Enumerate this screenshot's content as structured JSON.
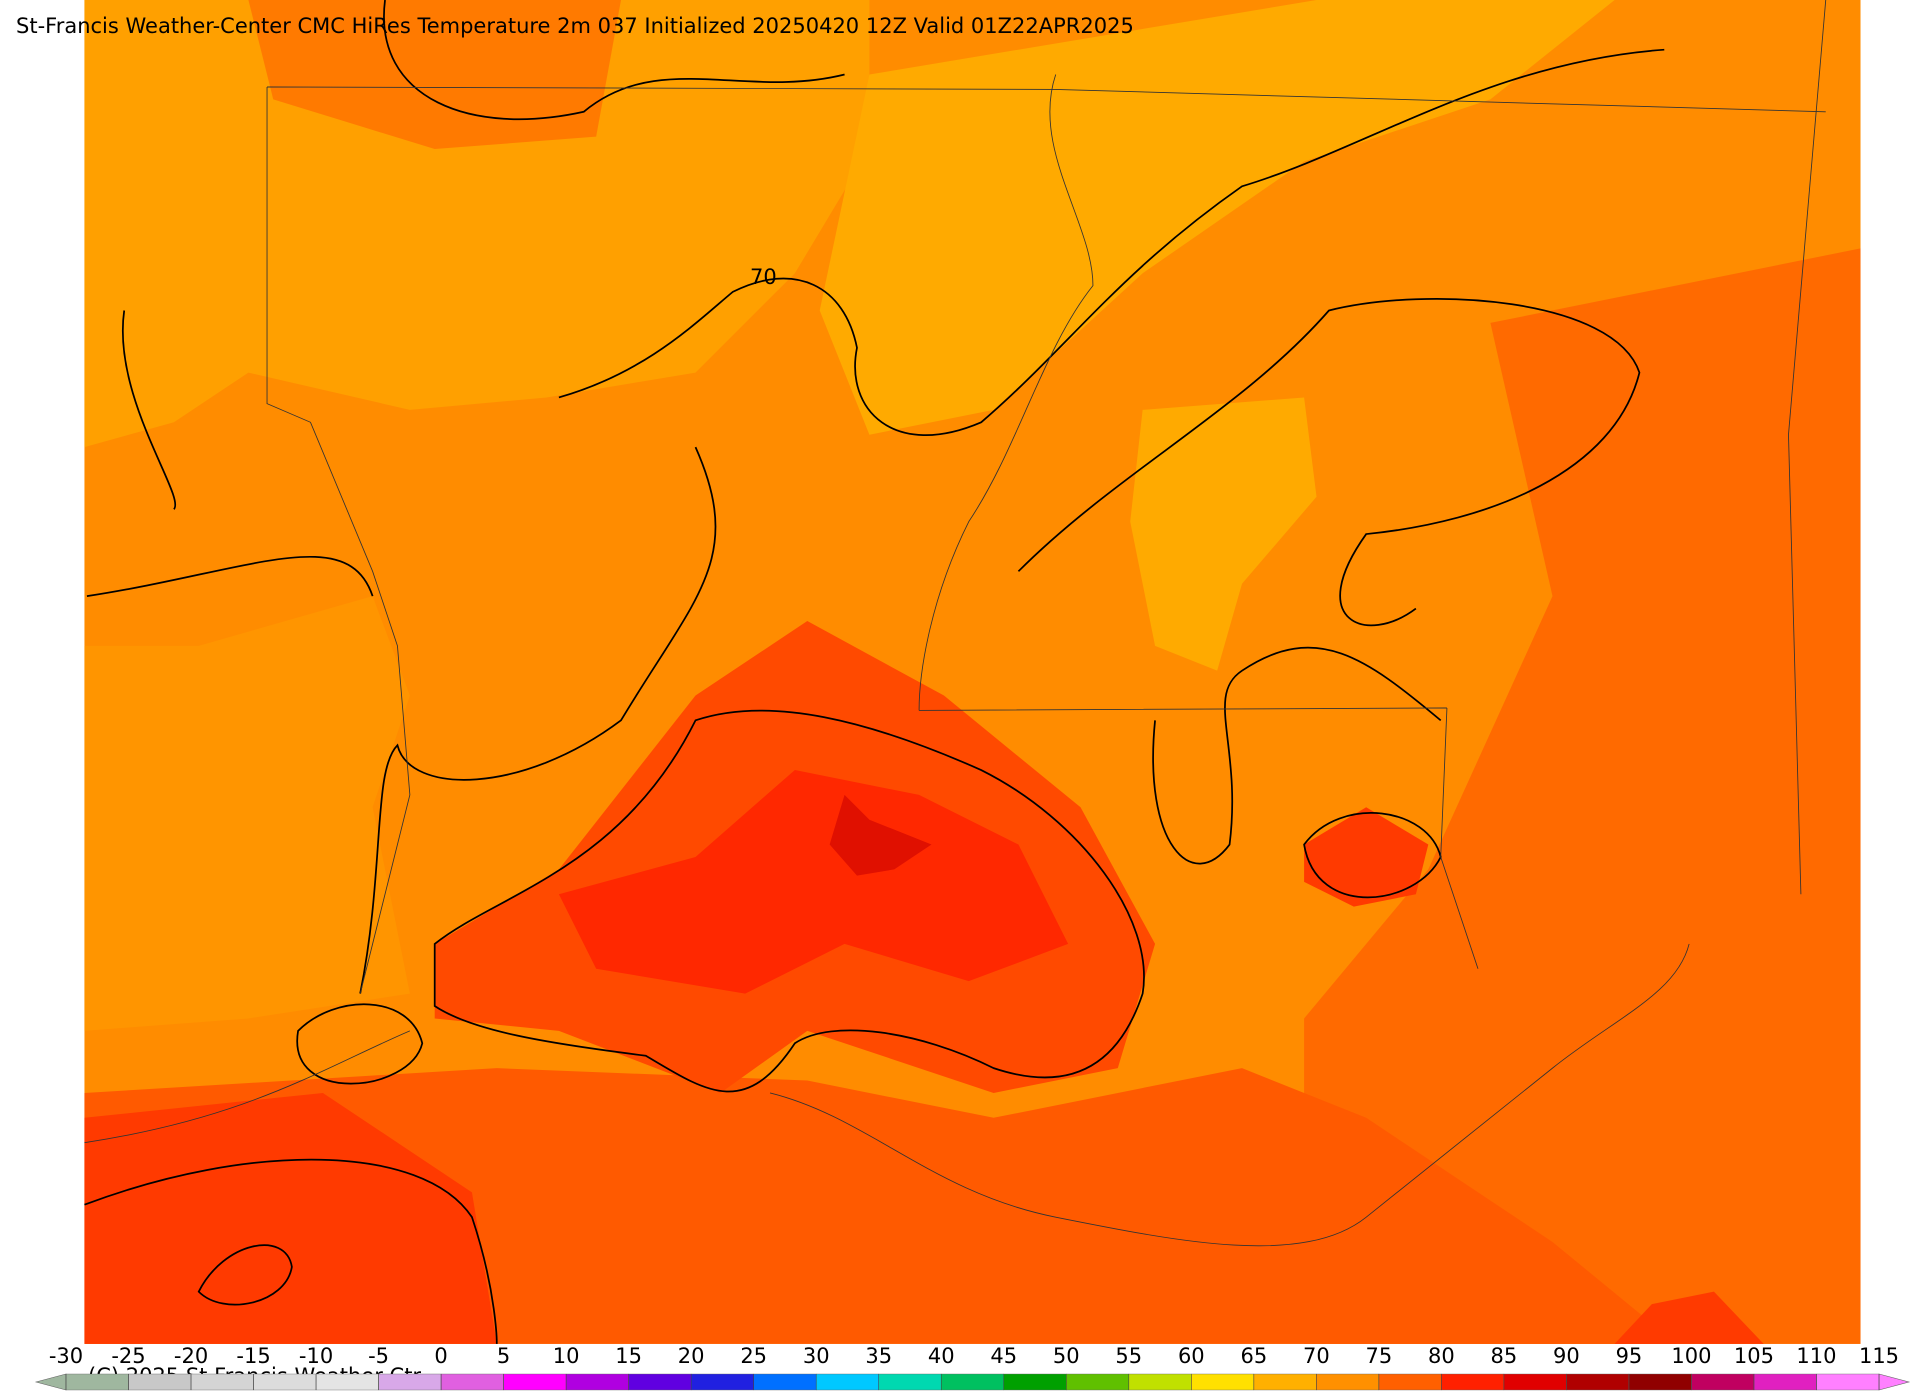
{
  "header": {
    "title": "St-Francis Weather-Center CMC HiRes Temperature 2m  037 Initialized 20250420 12Z Valid 01Z22APR2025"
  },
  "contour_labels": [
    70
  ],
  "copyright": "(C) 2025 St Francis Weather Ctr",
  "colorbar": {
    "ticks": [
      -30,
      -25,
      -20,
      -15,
      -10,
      -5,
      0,
      5,
      10,
      15,
      20,
      25,
      30,
      35,
      40,
      45,
      50,
      55,
      60,
      65,
      70,
      75,
      80,
      85,
      90,
      95,
      100,
      105,
      110,
      115
    ],
    "colors": [
      "#9fb79f",
      "#c8c8c8",
      "#d4d4d4",
      "#dcdcdc",
      "#e4e4e4",
      "#d8a8e8",
      "#e060e0",
      "#ff00ff",
      "#b000e0",
      "#6000e0",
      "#2020e0",
      "#0070ff",
      "#00c8ff",
      "#00d8b0",
      "#00c060",
      "#00a000",
      "#60c000",
      "#c0e000",
      "#ffe000",
      "#ffb000",
      "#ff9000",
      "#ff6000",
      "#ff2000",
      "#e00000",
      "#b00000",
      "#900000",
      "#c00060",
      "#e020c0",
      "#ff80ff"
    ]
  }
}
